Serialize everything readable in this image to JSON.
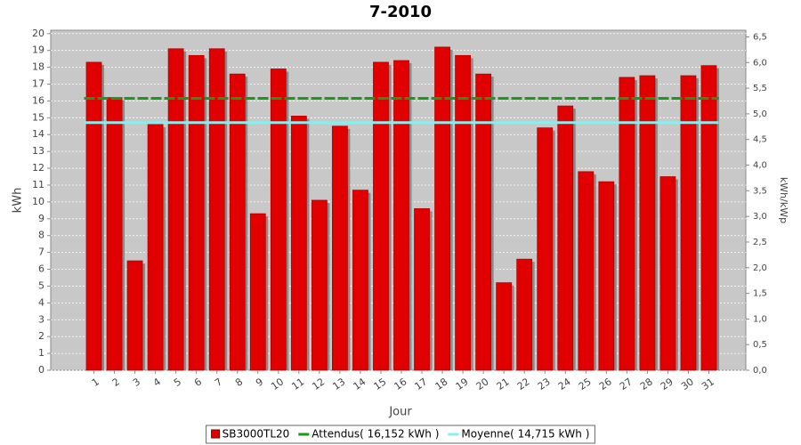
{
  "chart_data": {
    "type": "bar",
    "title": "7-2010",
    "x_label": "Jour",
    "y_label": "kWh",
    "y2_label": "kWh/kWp",
    "categories": [
      "1",
      "2",
      "3",
      "4",
      "5",
      "6",
      "7",
      "8",
      "9",
      "10",
      "11",
      "12",
      "13",
      "14",
      "15",
      "16",
      "17",
      "18",
      "19",
      "20",
      "21",
      "22",
      "23",
      "24",
      "25",
      "26",
      "27",
      "28",
      "29",
      "30",
      "31"
    ],
    "series": [
      {
        "name": "SB3000TL20",
        "color": "#e00000",
        "values": [
          18.3,
          16.2,
          6.5,
          14.6,
          19.1,
          18.7,
          19.1,
          17.6,
          9.3,
          17.9,
          15.1,
          10.1,
          14.5,
          10.7,
          18.3,
          18.4,
          9.6,
          19.2,
          18.7,
          17.6,
          5.2,
          6.6,
          14.4,
          15.7,
          11.8,
          11.2,
          17.4,
          17.5,
          11.5,
          17.5,
          18.1
        ]
      }
    ],
    "lines": [
      {
        "name": "Attendus( 16,152 kWh )",
        "color": "#1a9a1a",
        "value": 16.152
      },
      {
        "name": "Moyenne( 14,715 kWh )",
        "color": "#88eeee",
        "value": 14.715
      }
    ],
    "ylim": [
      0,
      20.2
    ],
    "yticks": [
      0,
      1,
      2,
      3,
      4,
      5,
      6,
      7,
      8,
      9,
      10,
      11,
      12,
      13,
      14,
      15,
      16,
      17,
      18,
      19,
      20
    ],
    "y2lim": [
      0,
      6.63
    ],
    "y2ticks": [
      {
        "value": 0,
        "label": "0,0"
      },
      {
        "value": 0.5,
        "label": "0,5"
      },
      {
        "value": 1,
        "label": "1,0"
      },
      {
        "value": 1.5,
        "label": "1,5"
      },
      {
        "value": 2,
        "label": "2,0"
      },
      {
        "value": 2.5,
        "label": "2,5"
      },
      {
        "value": 3,
        "label": "3,0"
      },
      {
        "value": 3.5,
        "label": "3,5"
      },
      {
        "value": 4,
        "label": "4,0"
      },
      {
        "value": 4.5,
        "label": "4,5"
      },
      {
        "value": 5,
        "label": "5,0"
      },
      {
        "value": 5.5,
        "label": "5,5"
      },
      {
        "value": 6,
        "label": "6,0"
      },
      {
        "value": 6.5,
        "label": "6,5"
      }
    ],
    "grid": true
  }
}
